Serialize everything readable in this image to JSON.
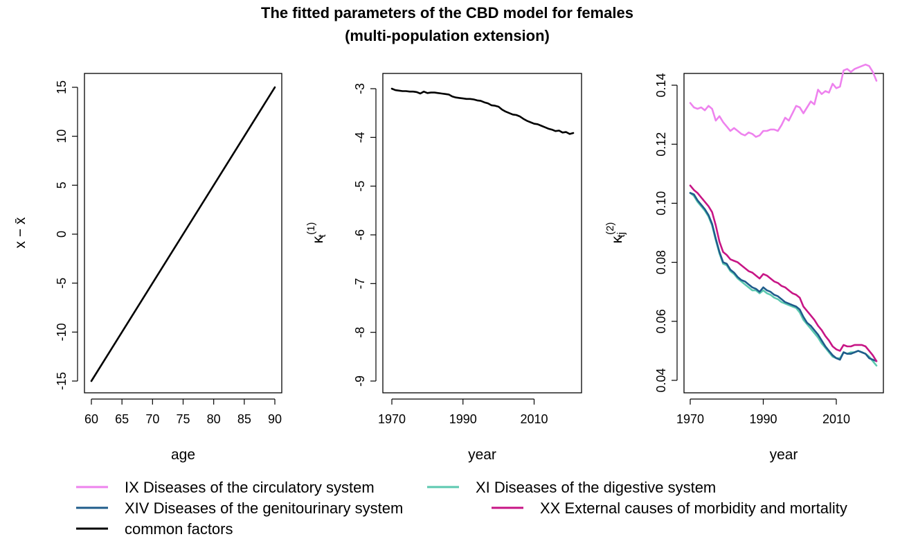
{
  "title": {
    "line1": "The fitted parameters of the CBD model for females",
    "line2": "(multi-population extension)"
  },
  "colors": {
    "ix": "#EE82EE",
    "xi": "#5BC8AF",
    "xiv": "#1F5C8B",
    "xx": "#C71585",
    "common": "#000000"
  },
  "chart_data": [
    {
      "type": "line",
      "panel": "age-effect",
      "xlabel": "age",
      "ylabel": "x − x̄",
      "xlim": [
        60,
        90
      ],
      "ylim": [
        -15,
        15
      ],
      "xticks": [
        60,
        65,
        70,
        75,
        80,
        85,
        90
      ],
      "yticks": [
        -15,
        -10,
        -5,
        0,
        5,
        10,
        15
      ],
      "series": [
        {
          "name": "common factors",
          "color": "#000000",
          "x": [
            60,
            90
          ],
          "y": [
            -15,
            15
          ]
        }
      ]
    },
    {
      "type": "line",
      "panel": "kappa1",
      "xlabel": "year",
      "ylabel": {
        "base": "κ",
        "sub": "t",
        "sup": "(1)"
      },
      "xlim": [
        1970,
        2021
      ],
      "ylim": [
        -9,
        -3
      ],
      "xticks": [
        1970,
        1990,
        2010
      ],
      "yticks": [
        -9,
        -8,
        -7,
        -6,
        -5,
        -4,
        -3
      ],
      "series": [
        {
          "name": "common factors",
          "color": "#000000",
          "x": [
            1970,
            1971,
            1972,
            1973,
            1974,
            1975,
            1976,
            1977,
            1978,
            1979,
            1980,
            1981,
            1982,
            1983,
            1984,
            1985,
            1986,
            1987,
            1988,
            1989,
            1990,
            1991,
            1992,
            1993,
            1994,
            1995,
            1996,
            1997,
            1998,
            1999,
            2000,
            2001,
            2002,
            2003,
            2004,
            2005,
            2006,
            2007,
            2008,
            2009,
            2010,
            2011,
            2012,
            2013,
            2014,
            2015,
            2016,
            2017,
            2018,
            2019,
            2020,
            2021
          ],
          "y": [
            -3.0,
            -3.03,
            -3.04,
            -3.05,
            -3.05,
            -3.06,
            -3.06,
            -3.07,
            -3.1,
            -3.06,
            -3.09,
            -3.08,
            -3.08,
            -3.09,
            -3.1,
            -3.11,
            -3.12,
            -3.16,
            -3.18,
            -3.19,
            -3.2,
            -3.21,
            -3.21,
            -3.22,
            -3.24,
            -3.25,
            -3.28,
            -3.3,
            -3.34,
            -3.35,
            -3.37,
            -3.43,
            -3.47,
            -3.5,
            -3.53,
            -3.54,
            -3.57,
            -3.62,
            -3.66,
            -3.69,
            -3.72,
            -3.73,
            -3.76,
            -3.79,
            -3.82,
            -3.84,
            -3.87,
            -3.86,
            -3.9,
            -3.89,
            -3.93,
            -3.91
          ]
        }
      ]
    },
    {
      "type": "line",
      "panel": "kappa2",
      "xlabel": "year",
      "ylabel": {
        "base": "κ",
        "sub": "tj",
        "sup": "(2)"
      },
      "xlim": [
        1970,
        2021
      ],
      "ylim": [
        0.04,
        0.15
      ],
      "xticks": [
        1970,
        1990,
        2010
      ],
      "yticks": [
        0.04,
        0.06,
        0.08,
        0.1,
        0.12,
        0.14
      ],
      "ytick_labels": [
        "0.04",
        "0.06",
        "0.08",
        "0.10",
        "0.12",
        "0.14"
      ],
      "series": [
        {
          "name": "IX Diseases of the circulatory system",
          "color": "#EE82EE",
          "x": [
            1970,
            1971,
            1972,
            1973,
            1974,
            1975,
            1976,
            1977,
            1978,
            1979,
            1980,
            1981,
            1982,
            1983,
            1984,
            1985,
            1986,
            1987,
            1988,
            1989,
            1990,
            1991,
            1992,
            1993,
            1994,
            1995,
            1996,
            1997,
            1998,
            1999,
            2000,
            2001,
            2002,
            2003,
            2004,
            2005,
            2006,
            2007,
            2008,
            2009,
            2010,
            2011,
            2012,
            2013,
            2014,
            2015,
            2016,
            2017,
            2018,
            2019,
            2020,
            2021
          ],
          "y": [
            0.134,
            0.1325,
            0.132,
            0.1325,
            0.1315,
            0.133,
            0.132,
            0.128,
            0.1295,
            0.1275,
            0.126,
            0.1245,
            0.1255,
            0.1245,
            0.1235,
            0.123,
            0.124,
            0.1235,
            0.1225,
            0.123,
            0.1245,
            0.1245,
            0.125,
            0.125,
            0.1245,
            0.1265,
            0.129,
            0.128,
            0.1305,
            0.133,
            0.1325,
            0.1305,
            0.1325,
            0.1345,
            0.1335,
            0.1385,
            0.137,
            0.138,
            0.1375,
            0.1405,
            0.139,
            0.1395,
            0.145,
            0.1455,
            0.1445,
            0.1455,
            0.146,
            0.1465,
            0.147,
            0.1465,
            0.1445,
            0.1415
          ]
        },
        {
          "name": "XI Diseases of the digestive system",
          "color": "#5BC8AF",
          "x": [
            1970,
            1971,
            1972,
            1973,
            1974,
            1975,
            1976,
            1977,
            1978,
            1979,
            1980,
            1981,
            1982,
            1983,
            1984,
            1985,
            1986,
            1987,
            1988,
            1989,
            1990,
            1991,
            1992,
            1993,
            1994,
            1995,
            1996,
            1997,
            1998,
            1999,
            2000,
            2001,
            2002,
            2003,
            2004,
            2005,
            2006,
            2007,
            2008,
            2009,
            2010,
            2011,
            2012,
            2013,
            2014,
            2015,
            2016,
            2017,
            2018,
            2019,
            2020,
            2021
          ],
          "y": [
            0.1035,
            0.1025,
            0.1005,
            0.099,
            0.0975,
            0.0955,
            0.0925,
            0.0875,
            0.083,
            0.0795,
            0.079,
            0.077,
            0.076,
            0.0745,
            0.0735,
            0.0725,
            0.0715,
            0.0705,
            0.0705,
            0.0695,
            0.0705,
            0.0695,
            0.069,
            0.068,
            0.0675,
            0.0665,
            0.066,
            0.0655,
            0.065,
            0.0645,
            0.063,
            0.0605,
            0.059,
            0.0575,
            0.056,
            0.0545,
            0.0525,
            0.051,
            0.0495,
            0.048,
            0.0475,
            0.0475,
            0.0495,
            0.049,
            0.0495,
            0.0495,
            0.05,
            0.0495,
            0.049,
            0.048,
            0.0465,
            0.045
          ]
        },
        {
          "name": "XIV Diseases of the genitourinary system",
          "color": "#1F5C8B",
          "x": [
            1970,
            1971,
            1972,
            1973,
            1974,
            1975,
            1976,
            1977,
            1978,
            1979,
            1980,
            1981,
            1982,
            1983,
            1984,
            1985,
            1986,
            1987,
            1988,
            1989,
            1990,
            1991,
            1992,
            1993,
            1994,
            1995,
            1996,
            1997,
            1998,
            1999,
            2000,
            2001,
            2002,
            2003,
            2004,
            2005,
            2006,
            2007,
            2008,
            2009,
            2010,
            2011,
            2012,
            2013,
            2014,
            2015,
            2016,
            2017,
            2018,
            2019,
            2020,
            2021
          ],
          "y": [
            0.1035,
            0.103,
            0.101,
            0.0995,
            0.098,
            0.096,
            0.093,
            0.088,
            0.0835,
            0.08,
            0.0795,
            0.0775,
            0.0765,
            0.075,
            0.074,
            0.0735,
            0.0725,
            0.0715,
            0.071,
            0.07,
            0.0715,
            0.0705,
            0.07,
            0.069,
            0.0685,
            0.0675,
            0.0665,
            0.066,
            0.0655,
            0.065,
            0.064,
            0.0615,
            0.0595,
            0.0585,
            0.057,
            0.0555,
            0.0535,
            0.0515,
            0.05,
            0.0485,
            0.0475,
            0.047,
            0.0495,
            0.049,
            0.049,
            0.0495,
            0.05,
            0.0495,
            0.049,
            0.0475,
            0.047,
            0.0465
          ]
        },
        {
          "name": "XX External causes of morbidity and mortality",
          "color": "#C71585",
          "x": [
            1970,
            1971,
            1972,
            1973,
            1974,
            1975,
            1976,
            1977,
            1978,
            1979,
            1980,
            1981,
            1982,
            1983,
            1984,
            1985,
            1986,
            1987,
            1988,
            1989,
            1990,
            1991,
            1992,
            1993,
            1994,
            1995,
            1996,
            1997,
            1998,
            1999,
            2000,
            2001,
            2002,
            2003,
            2004,
            2005,
            2006,
            2007,
            2008,
            2009,
            2010,
            2011,
            2012,
            2013,
            2014,
            2015,
            2016,
            2017,
            2018,
            2019,
            2020,
            2021
          ],
          "y": [
            0.106,
            0.1045,
            0.1035,
            0.102,
            0.1005,
            0.099,
            0.097,
            0.0925,
            0.087,
            0.0835,
            0.0825,
            0.081,
            0.0805,
            0.08,
            0.079,
            0.078,
            0.077,
            0.0765,
            0.0755,
            0.0745,
            0.076,
            0.0755,
            0.0745,
            0.0735,
            0.073,
            0.072,
            0.0715,
            0.0705,
            0.0695,
            0.069,
            0.068,
            0.065,
            0.0635,
            0.062,
            0.0605,
            0.0585,
            0.057,
            0.055,
            0.0535,
            0.0515,
            0.0505,
            0.05,
            0.052,
            0.0515,
            0.0515,
            0.052,
            0.052,
            0.052,
            0.0515,
            0.05,
            0.0485,
            0.0465
          ]
        }
      ]
    }
  ],
  "legend": [
    {
      "label": "IX Diseases of the circulatory system",
      "color": "#EE82EE"
    },
    {
      "label": "XI Diseases of the digestive system",
      "color": "#5BC8AF"
    },
    {
      "label": "XIV Diseases of the genitourinary system",
      "color": "#1F5C8B"
    },
    {
      "label": "XX External causes of morbidity and mortality",
      "color": "#C71585"
    },
    {
      "label": "common factors",
      "color": "#000000"
    }
  ]
}
